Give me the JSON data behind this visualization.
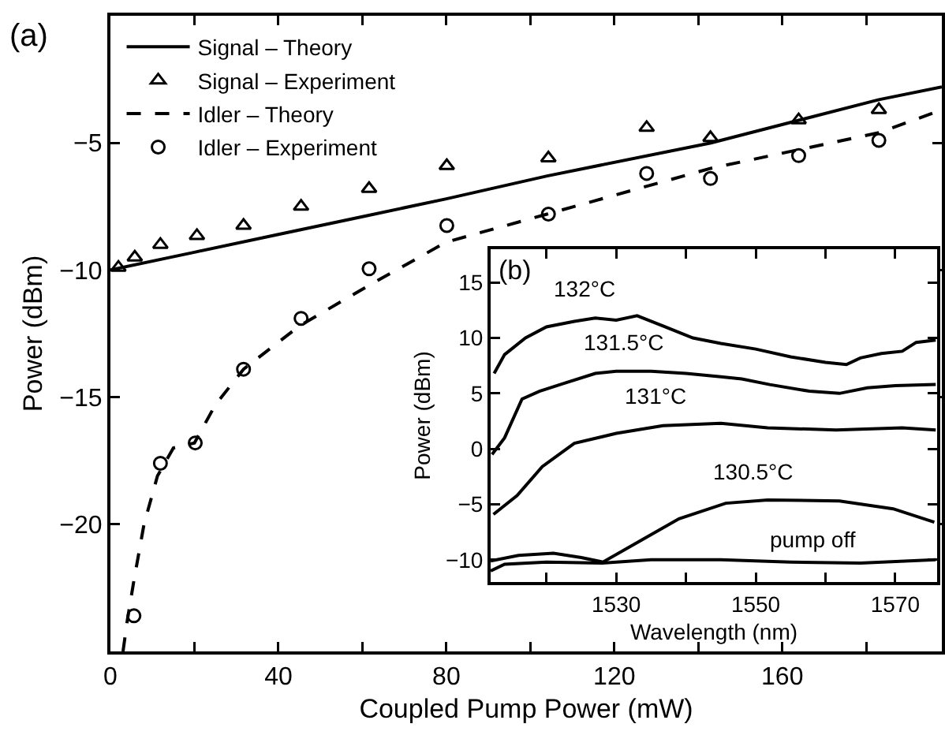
{
  "chart_data": [
    {
      "type": "line",
      "xlabel": "Coupled Pump Power (mW)",
      "ylabel": "Power (dBm)",
      "annotations": [
        "(a)"
      ],
      "xlim": [
        0,
        198
      ],
      "xticks": [
        0,
        {
          "value": 20,
          "label": null
        },
        40,
        {
          "value": 60,
          "label": null
        },
        80,
        {
          "value": 100,
          "label": null
        },
        120,
        {
          "value": 140,
          "label": null
        },
        160,
        {
          "value": 180,
          "label": null
        }
      ],
      "ylim": [
        -25,
        0
      ],
      "yticks": [
        -5,
        -10,
        -15,
        -20
      ],
      "grid": false,
      "legend": "top left",
      "series": [
        {
          "name": "Signal – Theory",
          "type": "line",
          "line_style": "solid",
          "marker": "none",
          "color": "#000000",
          "x": [
            0,
            20,
            40,
            60,
            80,
            104,
            143,
            183,
            198
          ],
          "values": [
            -10,
            -9.3,
            -8.6,
            -7.9,
            -7.2,
            -6.3,
            -5.0,
            -3.3,
            -2.8
          ]
        },
        {
          "name": "Signal – Experiment",
          "type": "scatter",
          "marker": "triangle",
          "color": "#000000",
          "x": [
            1.9,
            5.8,
            11.9,
            20.6,
            31.7,
            45.4,
            61.6,
            80.1,
            104.3,
            127.7,
            142.9,
            163.9,
            183
          ],
          "values": [
            -9.9,
            -9.5,
            -9.0,
            -8.65,
            -8.25,
            -7.5,
            -6.8,
            -5.9,
            -5.6,
            -4.4,
            -4.8,
            -4.1,
            -3.7
          ]
        },
        {
          "name": "Idler – Theory",
          "type": "line",
          "line_style": "dashed",
          "marker": "none",
          "color": "#000000",
          "x": [
            3,
            4,
            5.6,
            8,
            11.2,
            15,
            20,
            25,
            31.7,
            45,
            61.6,
            80,
            104,
            143,
            183,
            198
          ],
          "values": [
            -25,
            -23.8,
            -22.2,
            -20,
            -18.1,
            -17,
            -16.8,
            -15.3,
            -13.9,
            -12.2,
            -10.6,
            -8.9,
            -7.8,
            -6.0,
            -4.6,
            -3.7
          ]
        },
        {
          "name": "Idler – Experiment",
          "type": "scatter",
          "marker": "circle",
          "color": "#000000",
          "x": [
            5.6,
            11.9,
            20.2,
            31.7,
            45.4,
            61.6,
            80.1,
            104.3,
            127.7,
            142.9,
            163.9,
            183
          ],
          "values": [
            -23.6,
            -17.6,
            -16.8,
            -13.9,
            -11.9,
            -9.95,
            -8.25,
            -7.8,
            -6.2,
            -6.4,
            -5.5,
            -4.9
          ]
        }
      ]
    },
    {
      "type": "line",
      "xlabel": "Wavelength (nm)",
      "ylabel": "Power (dBm)",
      "annotations": [
        "(b)",
        "132°C",
        "131.5°C",
        "131°C",
        "130.5°C",
        "pump off"
      ],
      "xlim": [
        1512,
        1576
      ],
      "xticks": [
        {
          "value": 1520,
          "label": null
        },
        1530,
        {
          "value": 1540,
          "label": null
        },
        1550,
        {
          "value": 1560,
          "label": null
        },
        1570
      ],
      "ylim": [
        -12,
        18
      ],
      "yticks": [
        -10,
        -5,
        0,
        5,
        10,
        15
      ],
      "grid": false,
      "legend": false,
      "series": [
        {
          "color": "#000000",
          "x": [
            1512.5,
            1514,
            1517,
            1520,
            1524,
            1527,
            1530,
            1533,
            1537,
            1541,
            1545,
            1550,
            1555,
            1560,
            1563,
            1565,
            1568,
            1571,
            1573,
            1575.8
          ],
          "values": [
            6.8,
            8.5,
            10,
            11,
            11.5,
            11.8,
            11.6,
            12,
            11,
            10,
            9.5,
            9,
            8.3,
            7.8,
            7.6,
            8.2,
            8.6,
            8.8,
            9.6,
            9.8
          ]
        },
        {
          "color": "#000000",
          "x": [
            1512.2,
            1514,
            1516.5,
            1519,
            1522.5,
            1527,
            1530,
            1535,
            1540,
            1545,
            1548,
            1552,
            1557.7,
            1562,
            1566,
            1570,
            1575.8
          ],
          "values": [
            -0.5,
            1,
            4.5,
            5.2,
            5.9,
            6.8,
            7.0,
            7.0,
            6.8,
            6.5,
            6.3,
            5.8,
            5.2,
            5.0,
            5.5,
            5.7,
            5.8
          ]
        },
        {
          "color": "#000000",
          "x": [
            1512.4,
            1515.8,
            1519.4,
            1524,
            1530,
            1536.7,
            1545,
            1551.7,
            1561.5,
            1571,
            1575.8
          ],
          "values": [
            -5.9,
            -4.2,
            -1.6,
            0.5,
            1.4,
            2.1,
            2.3,
            1.9,
            1.7,
            1.9,
            1.7
          ]
        },
        {
          "color": "#000000",
          "x": [
            1512,
            1516,
            1521,
            1525,
            1528.1,
            1533.7,
            1539,
            1545.7,
            1551.7,
            1562,
            1569.7,
            1575.6
          ],
          "values": [
            -10.1,
            -9.6,
            -9.4,
            -9.8,
            -10.2,
            -8.2,
            -6.3,
            -4.9,
            -4.6,
            -4.7,
            -5.4,
            -6.6
          ]
        },
        {
          "color": "#000000",
          "x": [
            1512,
            1514,
            1520,
            1528,
            1535,
            1545,
            1555,
            1565,
            1575.8
          ],
          "values": [
            -11,
            -10.4,
            -10.2,
            -10.3,
            -10,
            -10,
            -10.2,
            -10.3,
            -10
          ]
        }
      ]
    }
  ]
}
